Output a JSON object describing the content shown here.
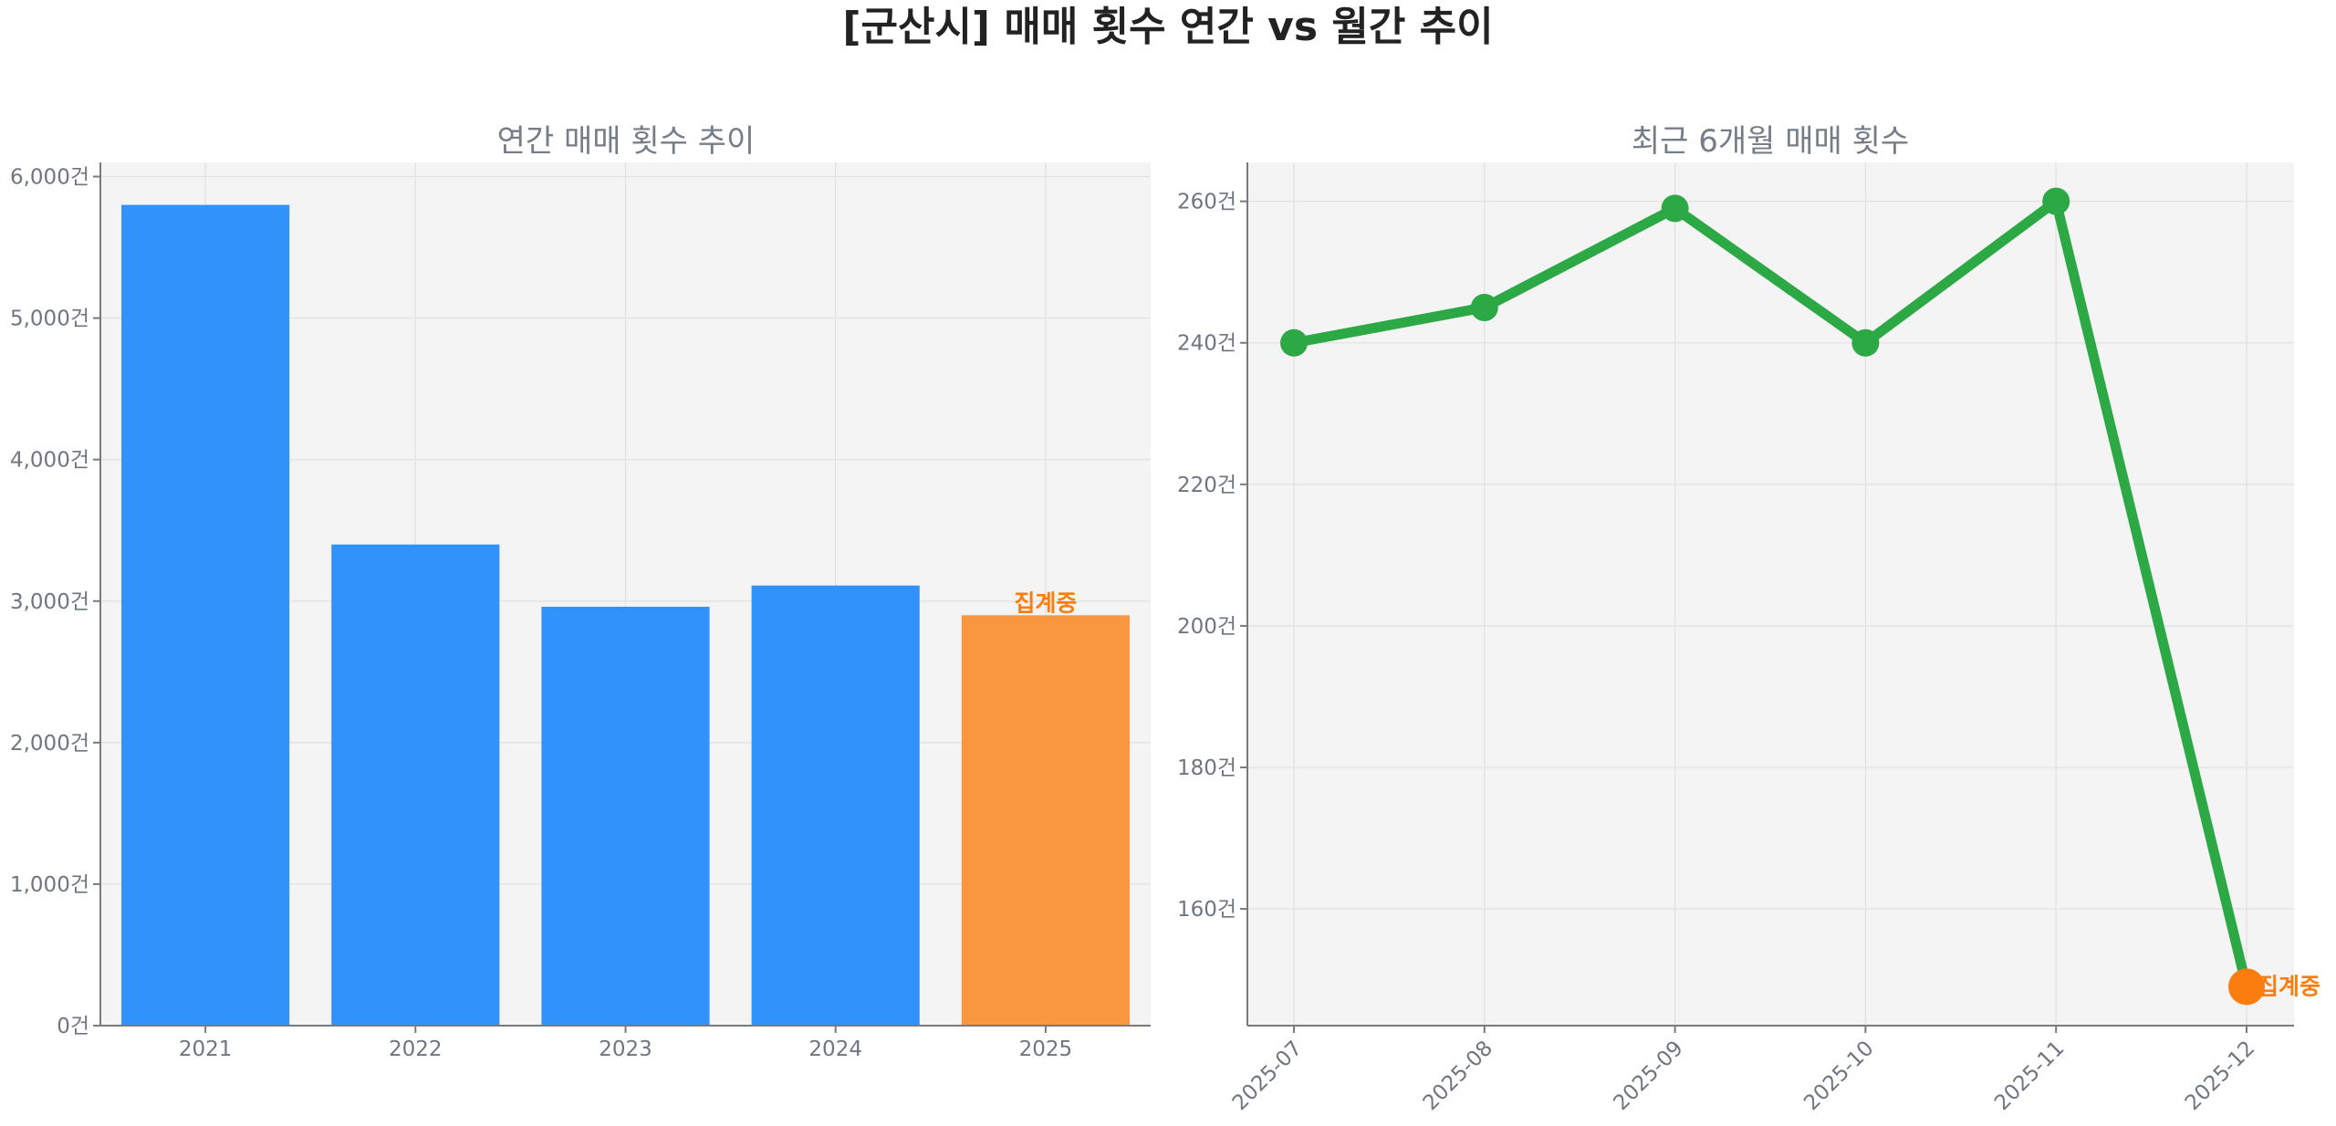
{
  "title": "[군산시] 매매 횟수 연간 vs 월간 추이",
  "colors": {
    "bar": "#3192fc",
    "bar_pending": "#f99741",
    "line": "#2ca844",
    "highlight": "#fb7d10",
    "background": "#f4f4f4"
  },
  "chart_data": [
    {
      "type": "bar",
      "title": "연간 매매 횟수 추이",
      "categories": [
        "2021",
        "2022",
        "2023",
        "2024",
        "2025"
      ],
      "values": [
        5800,
        3400,
        2960,
        3110,
        2900
      ],
      "ylim": [
        0,
        6100
      ],
      "yticks": [
        0,
        1000,
        2000,
        3000,
        4000,
        5000,
        6000
      ],
      "ytick_labels": [
        "0건",
        "1,000건",
        "2,000건",
        "3,000건",
        "4,000건",
        "5,000건",
        "6,000건"
      ],
      "highlight_index": 4,
      "annotation": "집계중",
      "grid": true
    },
    {
      "type": "line",
      "title": "최근 6개월 매매 횟수",
      "categories": [
        "2025-07",
        "2025-08",
        "2025-09",
        "2025-10",
        "2025-11",
        "2025-12"
      ],
      "values": [
        240,
        245,
        259,
        240,
        260,
        149
      ],
      "ylim": [
        143.5,
        265.5
      ],
      "yticks": [
        160,
        180,
        200,
        220,
        240,
        260
      ],
      "ytick_labels": [
        "160건",
        "180건",
        "200건",
        "220건",
        "240건",
        "260건"
      ],
      "highlight_index": 5,
      "annotation": "집계중",
      "grid": true
    }
  ]
}
